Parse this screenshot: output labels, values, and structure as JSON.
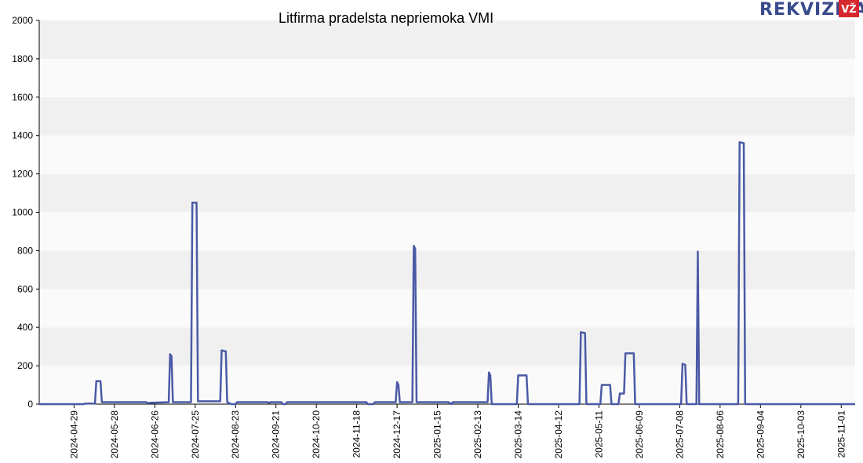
{
  "brand": {
    "name": "REKVIZITAI",
    "badge": "VŽ",
    "text_color": "#3a4a8c",
    "badge_color": "#d6262e"
  },
  "chart_data": {
    "type": "line",
    "title": "Litfirma pradelsta nepriemoka VMI",
    "xlabel": "",
    "ylabel": "",
    "ylim": [
      0,
      2000
    ],
    "yticks": [
      0,
      200,
      400,
      600,
      800,
      1000,
      1200,
      1400,
      1600,
      1800,
      2000
    ],
    "xticks": [
      "2024-04-29",
      "2024-05-28",
      "2024-06-26",
      "2024-07-25",
      "2024-08-23",
      "2024-09-21",
      "2024-10-20",
      "2024-11-18",
      "2024-12-17",
      "2025-01-15",
      "2025-02-13",
      "2025-03-14",
      "2025-04-12",
      "2025-05-11",
      "2025-06-09",
      "2025-07-08",
      "2025-08-06",
      "2025-09-04",
      "2025-10-03",
      "2025-11-01"
    ],
    "xlim": [
      "2024-04-04",
      "2025-11-11"
    ],
    "grid": "horizontal bands",
    "line_color": "#4a5aa6",
    "series": [
      {
        "points": [
          [
            "2024-04-04",
            0
          ],
          [
            "2024-05-06",
            0
          ],
          [
            "2024-05-07",
            3
          ],
          [
            "2024-05-14",
            3
          ],
          [
            "2024-05-15",
            120
          ],
          [
            "2024-05-18",
            120
          ],
          [
            "2024-05-19",
            10
          ],
          [
            "2024-06-20",
            10
          ],
          [
            "2024-06-21",
            5
          ],
          [
            "2024-06-23",
            7
          ],
          [
            "2024-07-06",
            10
          ],
          [
            "2024-07-07",
            260
          ],
          [
            "2024-07-08",
            250
          ],
          [
            "2024-07-09",
            10
          ],
          [
            "2024-07-22",
            10
          ],
          [
            "2024-07-23",
            1050
          ],
          [
            "2024-07-26",
            1050
          ],
          [
            "2024-07-27",
            15
          ],
          [
            "2024-08-12",
            15
          ],
          [
            "2024-08-13",
            280
          ],
          [
            "2024-08-16",
            275
          ],
          [
            "2024-08-17",
            10
          ],
          [
            "2024-08-20",
            0
          ],
          [
            "2024-08-23",
            0
          ],
          [
            "2024-08-24",
            10
          ],
          [
            "2024-09-15",
            10
          ],
          [
            "2024-09-16",
            7
          ],
          [
            "2024-09-17",
            10
          ],
          [
            "2024-09-25",
            10
          ],
          [
            "2024-09-26",
            0
          ],
          [
            "2024-09-28",
            0
          ],
          [
            "2024-09-29",
            10
          ],
          [
            "2024-11-25",
            10
          ],
          [
            "2024-11-26",
            0
          ],
          [
            "2024-11-30",
            0
          ],
          [
            "2024-12-01",
            10
          ],
          [
            "2024-12-16",
            10
          ],
          [
            "2024-12-17",
            115
          ],
          [
            "2024-12-18",
            100
          ],
          [
            "2024-12-19",
            10
          ],
          [
            "2024-12-28",
            10
          ],
          [
            "2024-12-29",
            825
          ],
          [
            "2024-12-30",
            810
          ],
          [
            "2024-12-31",
            10
          ],
          [
            "2025-01-23",
            10
          ],
          [
            "2025-01-25",
            0
          ],
          [
            "2025-01-26",
            10
          ],
          [
            "2025-02-20",
            10
          ],
          [
            "2025-02-21",
            165
          ],
          [
            "2025-02-22",
            150
          ],
          [
            "2025-02-23",
            0
          ],
          [
            "2025-03-13",
            0
          ],
          [
            "2025-03-14",
            150
          ],
          [
            "2025-03-20",
            150
          ],
          [
            "2025-03-21",
            0
          ],
          [
            "2025-04-27",
            0
          ],
          [
            "2025-04-28",
            375
          ],
          [
            "2025-05-01",
            370
          ],
          [
            "2025-05-02",
            0
          ],
          [
            "2025-05-12",
            0
          ],
          [
            "2025-05-13",
            100
          ],
          [
            "2025-05-19",
            100
          ],
          [
            "2025-05-20",
            0
          ],
          [
            "2025-05-25",
            0
          ],
          [
            "2025-05-26",
            55
          ],
          [
            "2025-05-29",
            55
          ],
          [
            "2025-05-30",
            265
          ],
          [
            "2025-06-05",
            265
          ],
          [
            "2025-06-06",
            0
          ],
          [
            "2025-07-09",
            0
          ],
          [
            "2025-07-10",
            210
          ],
          [
            "2025-07-12",
            205
          ],
          [
            "2025-07-13",
            0
          ],
          [
            "2025-07-20",
            0
          ],
          [
            "2025-07-21",
            795
          ],
          [
            "2025-07-22",
            0
          ],
          [
            "2025-08-19",
            0
          ],
          [
            "2025-08-20",
            1365
          ],
          [
            "2025-08-23",
            1360
          ],
          [
            "2025-08-24",
            0
          ],
          [
            "2025-11-11",
            0
          ]
        ]
      }
    ]
  }
}
